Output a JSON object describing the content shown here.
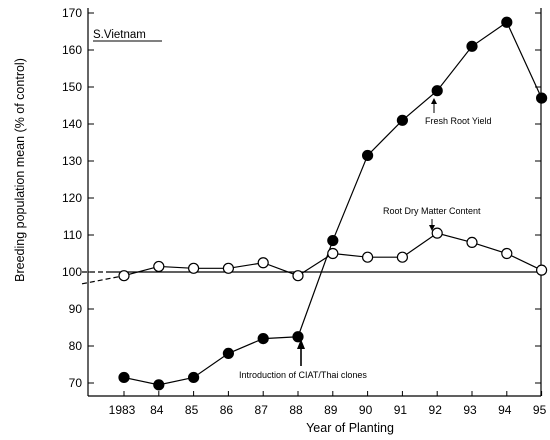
{
  "chart_data": {
    "type": "line",
    "title": "S.Vietnam",
    "xlabel": "Year of Planting",
    "ylabel": "Breeding population mean (% of control)",
    "x_tick_labels": [
      "1983",
      "84",
      "85",
      "86",
      "87",
      "88",
      "89",
      "90",
      "91",
      "92",
      "93",
      "94",
      "95"
    ],
    "x": [
      1983,
      1984,
      1985,
      1986,
      1987,
      1988,
      1989,
      1990,
      1991,
      1992,
      1993,
      1994,
      1995
    ],
    "xlim": [
      1982,
      1995
    ],
    "ylim": [
      67,
      172
    ],
    "y_ticks": [
      70,
      80,
      90,
      100,
      110,
      120,
      130,
      140,
      150,
      160,
      170
    ],
    "grid": false,
    "reference_line": 100,
    "series": [
      {
        "name": "Fresh Root Yield",
        "marker": "filled-circle",
        "values": [
          71.5,
          69.5,
          71.5,
          78,
          82,
          82.5,
          108.5,
          131.5,
          141,
          149,
          161,
          167.5,
          147
        ]
      },
      {
        "name": "Root Dry Matter Content",
        "marker": "open-circle",
        "values": [
          99,
          101.5,
          101,
          101,
          102.5,
          99,
          105,
          104,
          104,
          110.5,
          108,
          105,
          100.5
        ]
      }
    ],
    "annotations": {
      "introduction": "Introduction of CIAT/Thai clones",
      "fresh_root": "Fresh Root Yield",
      "dry_matter": "Root Dry Matter Content"
    }
  }
}
